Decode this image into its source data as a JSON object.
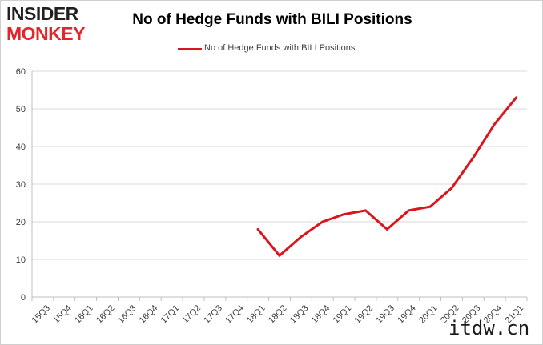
{
  "brand": {
    "line1": "INSIDER",
    "line2": "MONKEY"
  },
  "watermark": "itdw.cn",
  "colors": {
    "series": "#d9161c",
    "grid": "#d9d9d9",
    "axis": "#bfbfbf",
    "logo_red": "#e3262b"
  },
  "chart_data": {
    "type": "line",
    "title": "No of Hedge Funds with BILI Positions",
    "xlabel": "",
    "ylabel": "",
    "ylim": [
      0,
      60
    ],
    "yticks": [
      0,
      10,
      20,
      30,
      40,
      50,
      60
    ],
    "grid": true,
    "legend_position": "top-center",
    "categories": [
      "15Q3",
      "15Q4",
      "16Q1",
      "16Q2",
      "16Q3",
      "16Q4",
      "17Q1",
      "17Q2",
      "17Q3",
      "17Q4",
      "18Q1",
      "18Q2",
      "18Q3",
      "18Q4",
      "19Q1",
      "19Q2",
      "19Q3",
      "19Q4",
      "20Q1",
      "20Q2",
      "20Q3",
      "20Q4",
      "21Q1"
    ],
    "series": [
      {
        "name": "No of Hedge Funds with BILI Positions",
        "values": [
          null,
          null,
          null,
          null,
          null,
          null,
          null,
          null,
          null,
          null,
          18,
          11,
          16,
          20,
          22,
          23,
          18,
          23,
          24,
          29,
          37,
          46,
          53
        ]
      }
    ]
  }
}
